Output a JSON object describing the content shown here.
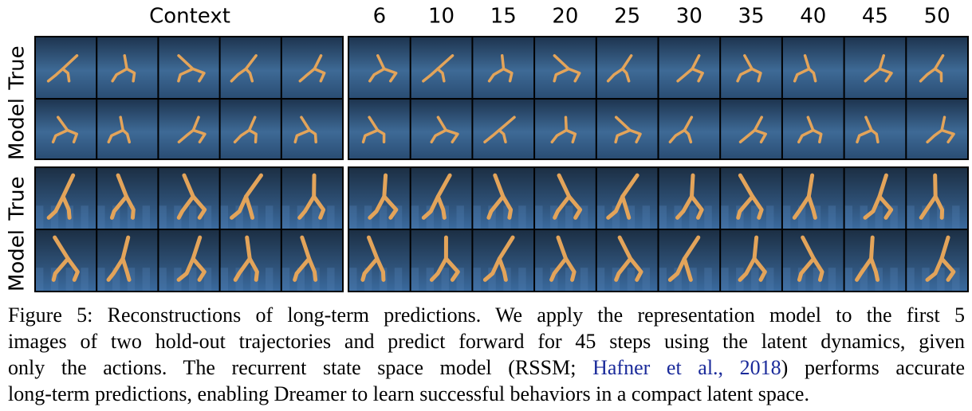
{
  "header": {
    "context_label": "Context",
    "steps": [
      6,
      10,
      15,
      20,
      25,
      30,
      35,
      40,
      45,
      50
    ]
  },
  "rows": [
    {
      "label": "True"
    },
    {
      "label": "Model"
    },
    {
      "label": "True"
    },
    {
      "label": "Model"
    }
  ],
  "caption": {
    "line1": "Figure 5: Reconstructions of long-term predictions. We apply the representation model to the first 5",
    "line2": "images of two hold-out trajectories and predict forward for 45 steps using the latent dynamics, given",
    "line3_before": "only the actions. The recurrent state space model (RSSM;",
    "citation": "Hafner et al., 2018",
    "line3_after": ") performs accurate",
    "line4": "long-term predictions, enabling Dreamer to learn successful behaviors in a compact latent space."
  }
}
